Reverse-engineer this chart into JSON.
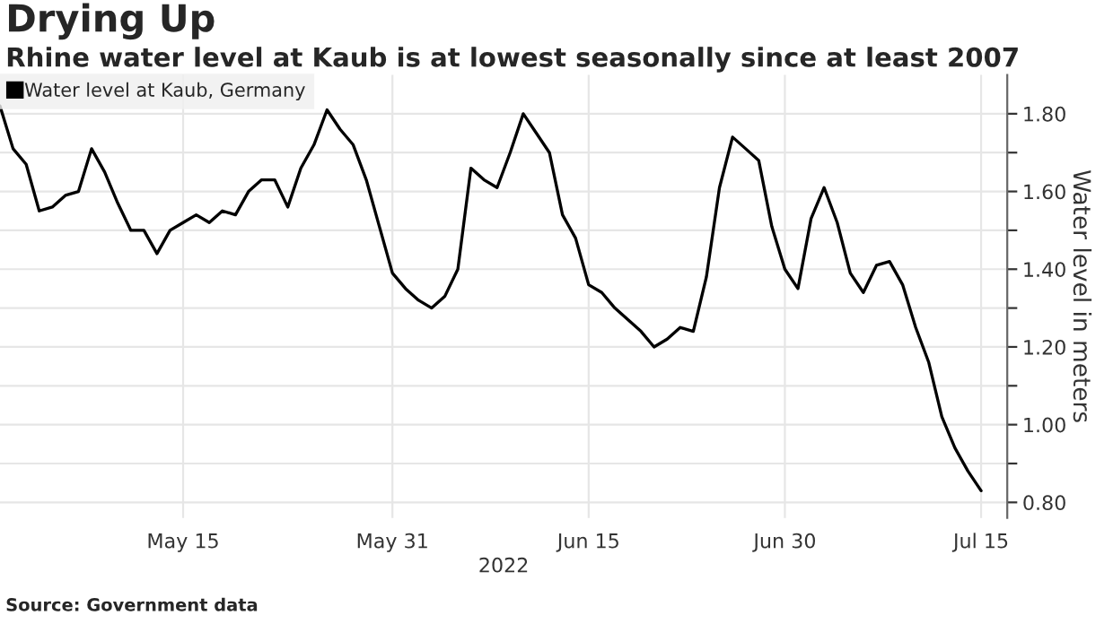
{
  "chart_data": {
    "type": "line",
    "title": "Drying Up",
    "subtitle": "Rhine water level at Kaub is at lowest seasonally since at least 2007",
    "xlabel": "2022",
    "ylabel": "Water level in meters",
    "annotations": [
      "Source: Government data"
    ],
    "x": [
      "2022-05-01",
      "2022-05-02",
      "2022-05-03",
      "2022-05-04",
      "2022-05-05",
      "2022-05-06",
      "2022-05-07",
      "2022-05-08",
      "2022-05-09",
      "2022-05-10",
      "2022-05-11",
      "2022-05-12",
      "2022-05-13",
      "2022-05-14",
      "2022-05-15",
      "2022-05-16",
      "2022-05-17",
      "2022-05-18",
      "2022-05-19",
      "2022-05-20",
      "2022-05-21",
      "2022-05-22",
      "2022-05-23",
      "2022-05-24",
      "2022-05-25",
      "2022-05-26",
      "2022-05-27",
      "2022-05-28",
      "2022-05-29",
      "2022-05-30",
      "2022-05-31",
      "2022-06-01",
      "2022-06-02",
      "2022-06-03",
      "2022-06-04",
      "2022-06-05",
      "2022-06-06",
      "2022-06-07",
      "2022-06-08",
      "2022-06-09",
      "2022-06-10",
      "2022-06-11",
      "2022-06-12",
      "2022-06-13",
      "2022-06-14",
      "2022-06-15",
      "2022-06-16",
      "2022-06-17",
      "2022-06-18",
      "2022-06-19",
      "2022-06-20",
      "2022-06-21",
      "2022-06-22",
      "2022-06-23",
      "2022-06-24",
      "2022-06-25",
      "2022-06-26",
      "2022-06-27",
      "2022-06-28",
      "2022-06-29",
      "2022-06-30",
      "2022-07-01",
      "2022-07-02",
      "2022-07-03",
      "2022-07-04",
      "2022-07-05",
      "2022-07-06",
      "2022-07-07",
      "2022-07-08",
      "2022-07-09",
      "2022-07-10",
      "2022-07-11",
      "2022-07-12",
      "2022-07-13",
      "2022-07-14",
      "2022-07-15"
    ],
    "series": [
      {
        "name": "Water level at Kaub, Germany",
        "color": "#000000",
        "values": [
          1.82,
          1.71,
          1.67,
          1.55,
          1.56,
          1.59,
          1.6,
          1.71,
          1.65,
          1.57,
          1.5,
          1.5,
          1.44,
          1.5,
          1.52,
          1.54,
          1.52,
          1.55,
          1.54,
          1.6,
          1.63,
          1.63,
          1.56,
          1.66,
          1.72,
          1.81,
          1.76,
          1.72,
          1.63,
          1.51,
          1.39,
          1.35,
          1.32,
          1.3,
          1.33,
          1.4,
          1.66,
          1.63,
          1.61,
          1.7,
          1.8,
          1.75,
          1.7,
          1.54,
          1.48,
          1.36,
          1.34,
          1.3,
          1.27,
          1.24,
          1.2,
          1.22,
          1.25,
          1.24,
          1.38,
          1.61,
          1.74,
          1.71,
          1.68,
          1.51,
          1.4,
          1.35,
          1.53,
          1.61,
          1.52,
          1.39,
          1.34,
          1.41,
          1.42,
          1.36,
          1.25,
          1.16,
          1.02,
          0.94,
          0.88,
          0.83
        ]
      }
    ],
    "xlim": [
      "2022-05-01",
      "2022-07-17"
    ],
    "xticks": [
      {
        "value": "2022-05-15",
        "label": "May 15"
      },
      {
        "value": "2022-05-31",
        "label": "May 31"
      },
      {
        "value": "2022-06-15",
        "label": "Jun 15"
      },
      {
        "value": "2022-06-30",
        "label": "Jun 30"
      },
      {
        "value": "2022-07-15",
        "label": "Jul 15"
      }
    ],
    "ylim": [
      0.76,
      1.9
    ],
    "yticks": [
      {
        "value": 0.8,
        "label": "0.80"
      },
      {
        "value": 0.9,
        "label": null
      },
      {
        "value": 1.0,
        "label": "1.00"
      },
      {
        "value": 1.1,
        "label": null
      },
      {
        "value": 1.2,
        "label": "1.20"
      },
      {
        "value": 1.3,
        "label": null
      },
      {
        "value": 1.4,
        "label": "1.40"
      },
      {
        "value": 1.5,
        "label": null
      },
      {
        "value": 1.6,
        "label": "1.60"
      },
      {
        "value": 1.7,
        "label": null
      },
      {
        "value": 1.8,
        "label": "1.80"
      }
    ],
    "grid": true,
    "legend": "top left"
  }
}
